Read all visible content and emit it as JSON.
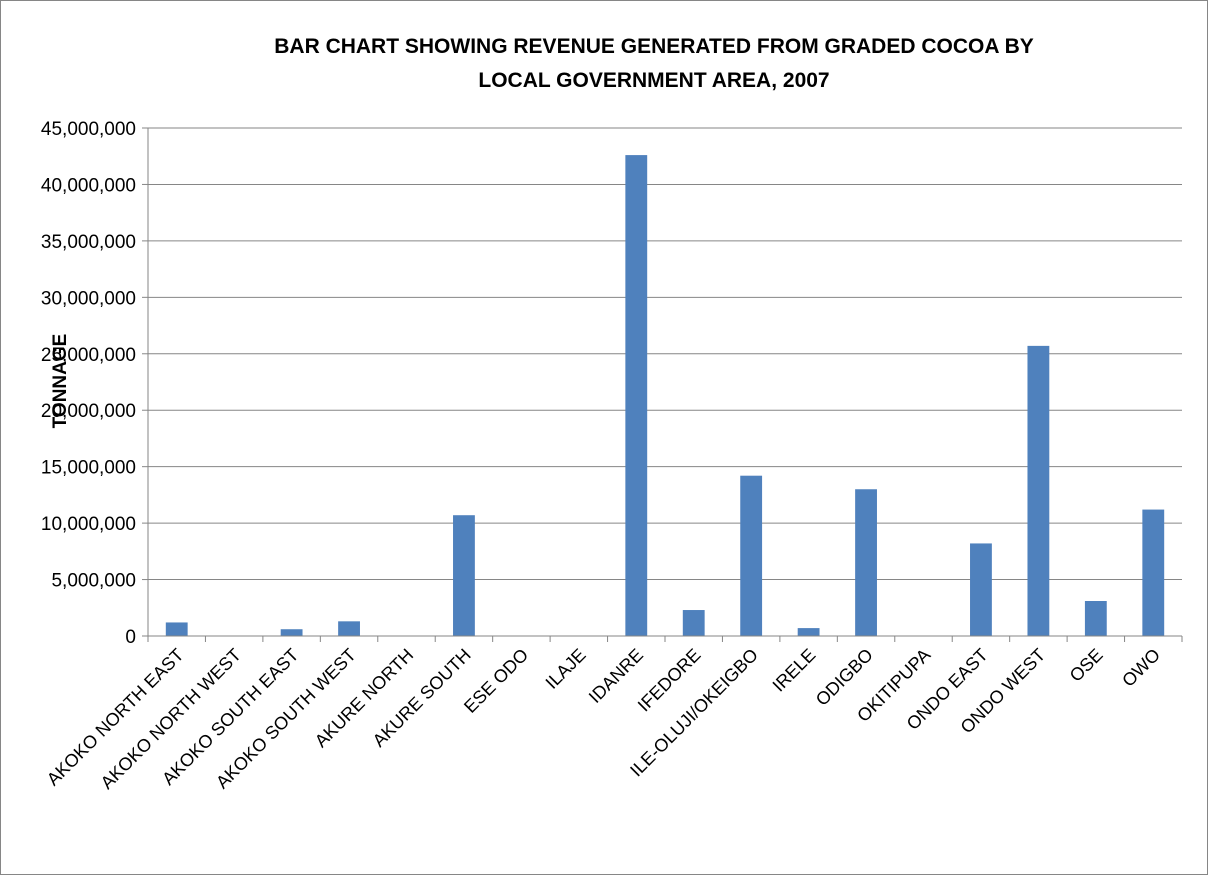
{
  "chart_data": {
    "type": "bar",
    "title_lines": [
      "BAR CHART SHOWING REVENUE GENERATED FROM GRADED COCOA BY",
      "LOCAL GOVERNMENT AREA, 2007"
    ],
    "xlabel": "",
    "ylabel": "TONNAGE",
    "ylim": [
      0,
      45000000
    ],
    "yticks": [
      {
        "value": 0,
        "label": "0"
      },
      {
        "value": 5000000,
        "label": "5,000,000"
      },
      {
        "value": 10000000,
        "label": "10,000,000"
      },
      {
        "value": 15000000,
        "label": "15,000,000"
      },
      {
        "value": 20000000,
        "label": "20,000,000"
      },
      {
        "value": 25000000,
        "label": "25,000,000"
      },
      {
        "value": 30000000,
        "label": "30,000,000"
      },
      {
        "value": 35000000,
        "label": "35,000,000"
      },
      {
        "value": 40000000,
        "label": "40,000,000"
      },
      {
        "value": 45000000,
        "label": "45,000,000"
      }
    ],
    "grid": true,
    "legend": "none",
    "bar_color": "#4F81BD",
    "categories": [
      "AKOKO NORTH EAST",
      "AKOKO NORTH WEST",
      "AKOKO SOUTH EAST",
      "AKOKO SOUTH WEST",
      "AKURE NORTH",
      "AKURE SOUTH",
      "ESE ODO",
      "ILAJE",
      "IDANRE",
      "IFEDORE",
      "ILE-OLUJI/OKEIGBO",
      "IRELE",
      "ODIGBO",
      "OKITIPUPA",
      "ONDO EAST",
      "ONDO WEST",
      "OSE",
      "OWO"
    ],
    "values": [
      1200000,
      0,
      600000,
      1300000,
      0,
      10700000,
      0,
      0,
      42600000,
      2300000,
      14200000,
      700000,
      13000000,
      0,
      8200000,
      25700000,
      3100000,
      11200000
    ]
  }
}
